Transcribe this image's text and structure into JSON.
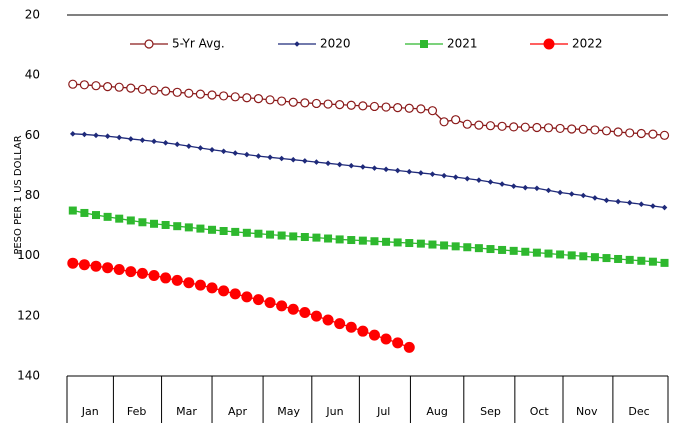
{
  "chart_data": {
    "type": "line",
    "y_label": "PESO PER 1 US DOLLAR",
    "x": [
      1,
      2,
      3,
      4,
      5,
      6,
      7,
      8,
      9,
      10,
      11,
      12,
      13,
      14,
      15,
      16,
      17,
      18,
      19,
      20,
      21,
      22,
      23,
      24,
      25,
      26,
      27,
      28,
      29,
      30,
      31,
      32,
      33,
      34,
      35,
      36,
      37,
      38,
      39,
      40,
      41,
      42,
      43,
      44,
      45,
      46,
      47,
      48,
      49,
      50,
      51,
      52
    ],
    "xlim": [
      0.5,
      52.3
    ],
    "xticks": [
      {
        "value": 2.5,
        "label": "Jan"
      },
      {
        "value": 6.5,
        "label": "Feb"
      },
      {
        "value": 10.8,
        "label": "Mar"
      },
      {
        "value": 15.2,
        "label": "Apr"
      },
      {
        "value": 19.6,
        "label": "May"
      },
      {
        "value": 23.6,
        "label": "Jun"
      },
      {
        "value": 27.8,
        "label": "Jul"
      },
      {
        "value": 32.4,
        "label": "Aug"
      },
      {
        "value": 37,
        "label": "Sep"
      },
      {
        "value": 41.2,
        "label": "Oct"
      },
      {
        "value": 45.3,
        "label": "Nov"
      },
      {
        "value": 49.8,
        "label": "Dec"
      }
    ],
    "ylim": [
      20,
      140
    ],
    "yticks": [
      20,
      40,
      60,
      80,
      100,
      120,
      140
    ],
    "y_inverted": true,
    "grid": false,
    "legend": "top",
    "series": [
      {
        "name": "5-Yr Avg.",
        "color": "#8b1a1a",
        "marker": "open-circle",
        "values": [
          43.0,
          43.2,
          43.5,
          43.8,
          44.0,
          44.3,
          44.7,
          45.0,
          45.3,
          45.7,
          46.0,
          46.3,
          46.6,
          46.9,
          47.2,
          47.5,
          47.8,
          48.2,
          48.6,
          49.0,
          49.2,
          49.4,
          49.6,
          49.8,
          50.0,
          50.2,
          50.4,
          50.6,
          50.8,
          51.0,
          51.2,
          51.8,
          55.5,
          54.8,
          56.3,
          56.6,
          56.8,
          57.0,
          57.2,
          57.3,
          57.4,
          57.5,
          57.7,
          57.9,
          58.0,
          58.2,
          58.5,
          58.9,
          59.2,
          59.4,
          59.6,
          60.0
        ]
      },
      {
        "name": "2020",
        "color": "#1f2a7a",
        "marker": "diamond",
        "values": [
          59.5,
          59.7,
          60.0,
          60.3,
          60.7,
          61.2,
          61.6,
          62.0,
          62.5,
          63.0,
          63.6,
          64.2,
          64.8,
          65.3,
          65.9,
          66.4,
          66.9,
          67.3,
          67.7,
          68.1,
          68.5,
          68.9,
          69.3,
          69.7,
          70.1,
          70.5,
          70.9,
          71.3,
          71.7,
          72.1,
          72.5,
          72.9,
          73.4,
          73.9,
          74.4,
          74.9,
          75.5,
          76.2,
          76.9,
          77.4,
          77.6,
          78.3,
          79.0,
          79.5,
          80.0,
          80.8,
          81.6,
          82.0,
          82.4,
          82.9,
          83.5,
          84.0
        ]
      },
      {
        "name": "2021",
        "color": "#2eb82e",
        "marker": "square",
        "values": [
          85.0,
          85.8,
          86.5,
          87.1,
          87.7,
          88.3,
          88.9,
          89.4,
          89.8,
          90.2,
          90.6,
          91.0,
          91.4,
          91.8,
          92.1,
          92.4,
          92.7,
          93.0,
          93.3,
          93.6,
          93.8,
          94.0,
          94.3,
          94.6,
          94.8,
          95.0,
          95.2,
          95.4,
          95.6,
          95.8,
          96.0,
          96.3,
          96.6,
          96.9,
          97.2,
          97.5,
          97.8,
          98.1,
          98.4,
          98.7,
          99.0,
          99.3,
          99.6,
          99.9,
          100.2,
          100.5,
          100.8,
          101.1,
          101.4,
          101.7,
          102.0,
          102.4
        ]
      },
      {
        "name": "2022",
        "color": "#ff0000",
        "marker": "circle",
        "values": [
          102.5,
          103.0,
          103.5,
          104.0,
          104.6,
          105.3,
          105.9,
          106.6,
          107.4,
          108.2,
          109.0,
          109.8,
          110.7,
          111.7,
          112.7,
          113.7,
          114.6,
          115.6,
          116.7,
          117.8,
          118.9,
          120.1,
          121.4,
          122.6,
          123.8,
          125.1,
          126.4,
          127.7,
          129.0,
          130.5,
          null,
          null,
          null,
          null,
          null,
          null,
          null,
          null,
          null,
          null,
          null,
          null,
          null,
          null,
          null,
          null,
          null,
          null,
          null,
          null,
          null,
          null
        ]
      }
    ]
  }
}
